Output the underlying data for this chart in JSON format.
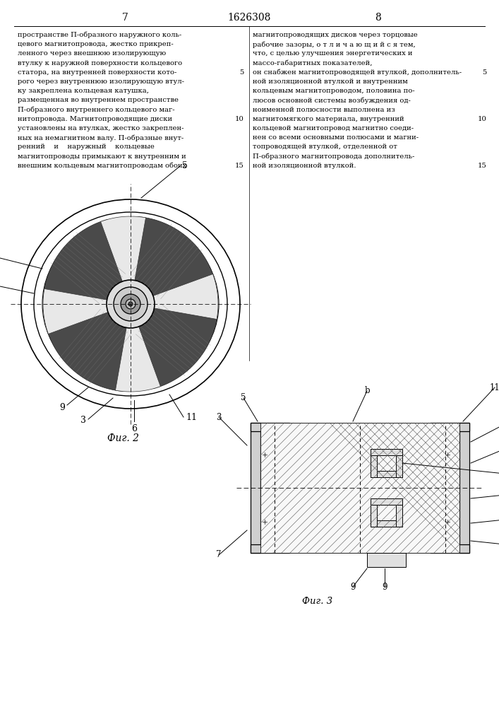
{
  "page_number_left": "7",
  "page_number_right": "8",
  "patent_number": "1626308",
  "background_color": "#ffffff",
  "fig2_label": "Фиг. 2",
  "fig3_label": "Фиг. 3",
  "left_column_text": [
    "пространстве П-образного наружного коль-",
    "цевого магнитопровода, жестко прикреп-",
    "ленного через внешнюю изолирующую",
    "втулку к наружной поверхности кольцевого",
    "статора, на внутренней поверхности кото-",
    "рого через внутреннюю изолирующую втул-",
    "ку закреплена кольцевая катушка,",
    "размещенная во внутреннем пространстве",
    "П-образного внутреннего кольцевого маг-",
    "нитопровода. Магнитопроводящие диски",
    "установлены на втулках, жестко закреплен-",
    "ных на немагнитном валу. П-образные внут-",
    "ренний    и    наружный    кольцевые",
    "магнитопроводы примыкают к внутренним и",
    "внешним кольцевым магнитопроводам обоих"
  ],
  "right_column_text": [
    "магнитопроводящих дисков через торцовые",
    "рабочие зазоры, о т л и ч а ю щ и й с я тем,",
    "что, с целью улучшения энергетических и",
    "массо-габаритных показателей,",
    "он снабжен магнитопроводящей втулкой, дополнитель-",
    "ной изоляционной втулкой и внутренним",
    "кольцевым магнитопроводом, половина по-",
    "люсов основной системы возбуждения од-",
    "ноименной полюсности выполнена из",
    "магнитомягкого материала, внутренний",
    "кольцевой магнитопровод магнитно соеди-",
    "нен со всеми основными полюсами и магни-",
    "топроводящей втулкой, отделенной от",
    "П-образного магнитопровода дополнитель-",
    "ной изоляционной втулкой."
  ]
}
